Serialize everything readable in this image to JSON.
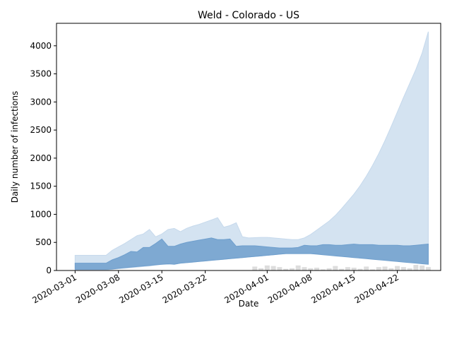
{
  "chart_data": {
    "type": "area",
    "title": "Weld - Colorado - US",
    "xlabel": "Date",
    "ylabel": "Daily number of infections",
    "ylim": [
      0,
      4400
    ],
    "xlim": [
      "2020-02-27",
      "2020-04-29"
    ],
    "grid": false,
    "x_tick_labels": [
      "2020-03-01",
      "2020-03-08",
      "2020-03-15",
      "2020-03-22",
      "2020-04-01",
      "2020-04-08",
      "2020-04-15",
      "2020-04-22"
    ],
    "y_tick_labels": [
      "0",
      "500",
      "1000",
      "1500",
      "2000",
      "2500",
      "3000",
      "3500",
      "4000"
    ],
    "x_tick_rotation_deg": 30,
    "colors": {
      "outer_band": "#c6d9ec",
      "inner_band": "#6f9fcd",
      "observed_bars": "#dddddd"
    },
    "dates": [
      "2020-03-01",
      "2020-03-02",
      "2020-03-03",
      "2020-03-04",
      "2020-03-05",
      "2020-03-06",
      "2020-03-07",
      "2020-03-08",
      "2020-03-09",
      "2020-03-10",
      "2020-03-11",
      "2020-03-12",
      "2020-03-13",
      "2020-03-14",
      "2020-03-15",
      "2020-03-16",
      "2020-03-17",
      "2020-03-18",
      "2020-03-19",
      "2020-03-20",
      "2020-03-21",
      "2020-03-22",
      "2020-03-23",
      "2020-03-24",
      "2020-03-25",
      "2020-03-26",
      "2020-03-27",
      "2020-03-28",
      "2020-03-29",
      "2020-03-30",
      "2020-03-31",
      "2020-04-01",
      "2020-04-02",
      "2020-04-03",
      "2020-04-04",
      "2020-04-05",
      "2020-04-06",
      "2020-04-07",
      "2020-04-08",
      "2020-04-09",
      "2020-04-10",
      "2020-04-11",
      "2020-04-12",
      "2020-04-13",
      "2020-04-14",
      "2020-04-15",
      "2020-04-16",
      "2020-04-17",
      "2020-04-18",
      "2020-04-19",
      "2020-04-20",
      "2020-04-21",
      "2020-04-22",
      "2020-04-23",
      "2020-04-24",
      "2020-04-25",
      "2020-04-26",
      "2020-04-27"
    ],
    "series": [
      {
        "role": "outer",
        "lower": [
          10,
          10,
          10,
          10,
          10,
          10,
          20,
          30,
          40,
          50,
          60,
          70,
          80,
          95,
          110,
          110,
          120,
          130,
          140,
          150,
          160,
          170,
          180,
          190,
          200,
          210,
          220,
          230,
          240,
          250,
          260,
          270,
          280,
          290,
          300,
          300,
          300,
          300,
          300,
          300,
          300,
          290,
          280,
          270,
          260,
          250,
          240,
          230,
          220,
          210,
          200,
          190,
          180,
          170,
          160,
          150,
          140,
          130
        ],
        "upper": [
          270,
          270,
          270,
          270,
          270,
          270,
          360,
          420,
          480,
          550,
          620,
          650,
          730,
          600,
          650,
          730,
          750,
          690,
          750,
          790,
          820,
          860,
          900,
          940,
          770,
          800,
          850,
          600,
          580,
          585,
          590,
          590,
          580,
          570,
          560,
          550,
          550,
          580,
          640,
          720,
          800,
          880,
          980,
          1100,
          1230,
          1360,
          1510,
          1680,
          1870,
          2080,
          2310,
          2560,
          2820,
          3080,
          3330,
          3580,
          3870,
          4250
        ]
      },
      {
        "role": "inner",
        "lower": [
          20,
          20,
          20,
          20,
          20,
          20,
          25,
          40,
          50,
          60,
          70,
          80,
          90,
          100,
          110,
          120,
          110,
          130,
          140,
          150,
          160,
          170,
          180,
          190,
          200,
          210,
          220,
          230,
          240,
          250,
          260,
          270,
          280,
          290,
          300,
          300,
          300,
          300,
          300,
          290,
          280,
          270,
          260,
          250,
          240,
          230,
          220,
          210,
          200,
          190,
          180,
          170,
          160,
          150,
          140,
          130,
          120,
          110
        ],
        "upper": [
          130,
          130,
          130,
          130,
          130,
          130,
          190,
          230,
          280,
          340,
          330,
          410,
          410,
          480,
          560,
          430,
          430,
          470,
          500,
          520,
          540,
          560,
          580,
          550,
          550,
          560,
          430,
          440,
          440,
          440,
          430,
          420,
          410,
          400,
          400,
          400,
          410,
          450,
          440,
          440,
          460,
          460,
          450,
          450,
          460,
          470,
          460,
          460,
          460,
          450,
          450,
          450,
          450,
          440,
          440,
          450,
          460,
          470
        ]
      }
    ],
    "observed_bars": [
      0,
      0,
      0,
      0,
      0,
      0,
      0,
      0,
      0,
      0,
      0,
      0,
      0,
      0,
      0,
      0,
      0,
      0,
      0,
      0,
      0,
      0,
      0,
      0,
      0,
      0,
      0,
      0,
      0,
      70,
      40,
      90,
      80,
      60,
      30,
      40,
      90,
      60,
      40,
      50,
      20,
      40,
      80,
      30,
      60,
      50,
      30,
      70,
      20,
      60,
      70,
      40,
      80,
      60,
      40,
      100,
      90,
      60
    ]
  }
}
